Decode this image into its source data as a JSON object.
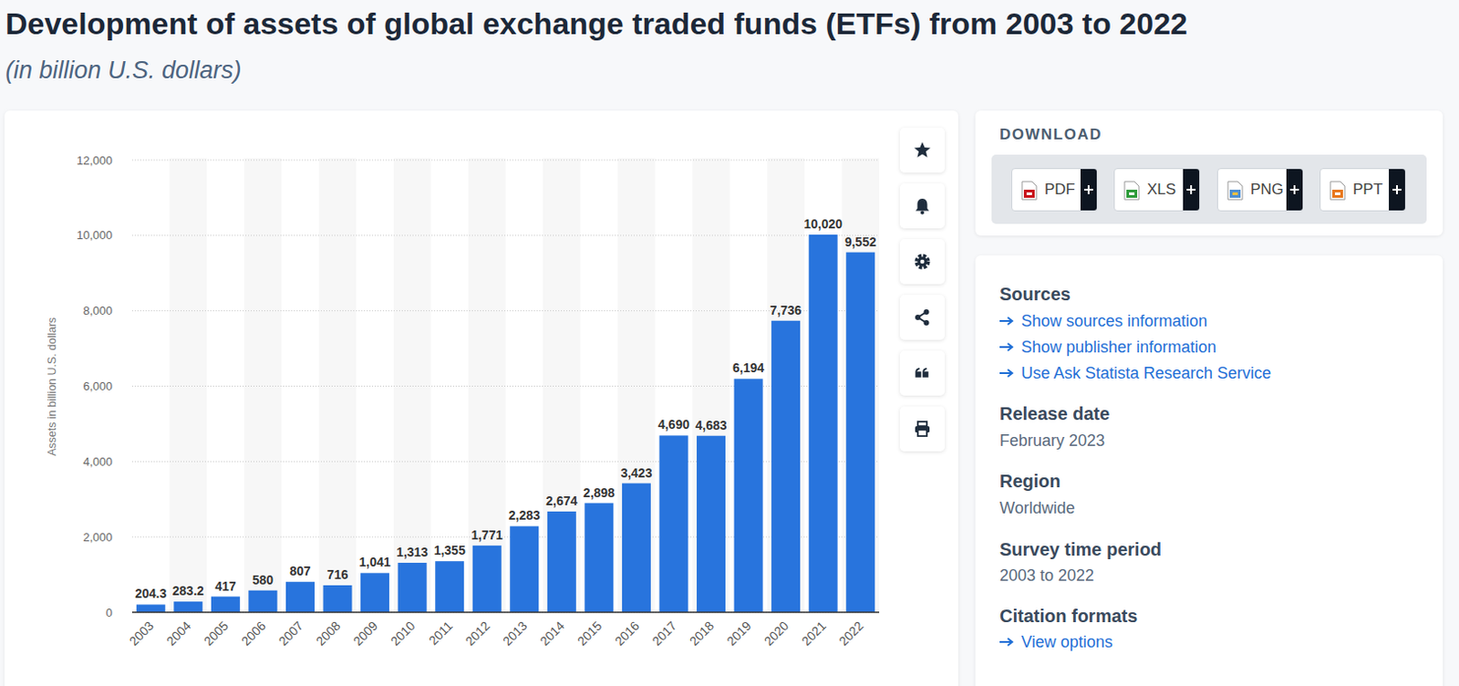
{
  "chart_data": {
    "type": "bar",
    "title": "Development of assets of global exchange traded funds (ETFs) from 2003 to 2022",
    "subtitle": "(in billion U.S. dollars)",
    "y_label": "Assets in billion U.S. dollars",
    "categories": [
      "2003",
      "2004",
      "2005",
      "2006",
      "2007",
      "2008",
      "2009",
      "2010",
      "2011",
      "2012",
      "2013",
      "2014",
      "2015",
      "2016",
      "2017",
      "2018",
      "2019",
      "2020",
      "2021",
      "2022"
    ],
    "values": [
      204.3,
      283.2,
      417,
      580,
      807,
      716,
      1041,
      1313,
      1355,
      1771,
      2283,
      2674,
      2898,
      3423,
      4690,
      4683,
      6194,
      7736,
      10020,
      9552
    ],
    "value_labels": [
      "204.3",
      "283.2",
      "417",
      "580",
      "807",
      "716",
      "1,041",
      "1,313",
      "1,355",
      "1,771",
      "2,283",
      "2,674",
      "2,898",
      "3,423",
      "4,690",
      "4,683",
      "6,194",
      "7,736",
      "10,020",
      "9,552"
    ],
    "color": "#2874dd",
    "ylim": [
      0,
      12000
    ],
    "yticks": [
      0,
      {
        "value": 2000,
        "label": "2,000"
      },
      {
        "value": 4000,
        "label": "4,000"
      },
      {
        "value": 6000,
        "label": "6,000"
      },
      {
        "value": 8000,
        "label": "8,000"
      },
      {
        "value": 10000,
        "label": "10,000"
      },
      {
        "value": 12000,
        "label": "12,000"
      }
    ],
    "grid": true,
    "data_labels": true
  },
  "page": {
    "download": {
      "title": "DOWNLOAD",
      "buttons": [
        "PDF",
        "XLS",
        "PNG",
        "PPT"
      ]
    },
    "info": {
      "sources_title": "Sources",
      "links": [
        "Show sources information",
        "Show publisher information",
        "Use Ask Statista Research Service"
      ],
      "fields": [
        {
          "label": "Release date",
          "value": "February 2023"
        },
        {
          "label": "Region",
          "value": "Worldwide"
        },
        {
          "label": "Survey time period",
          "value": "2003 to 2022"
        }
      ],
      "citation": {
        "label": "Citation formats",
        "link": "View options"
      }
    }
  }
}
